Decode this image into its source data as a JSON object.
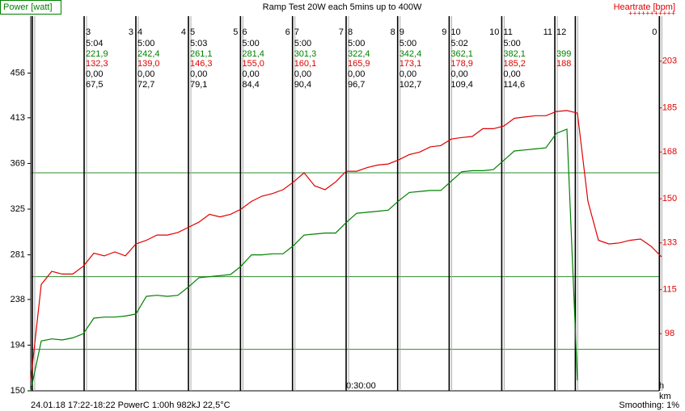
{
  "chart_data": {
    "type": "line",
    "title": "Ramp Test 20W each 5mins up to 400W",
    "y_label": "Power [watt]",
    "y2_label": "Heartrate [bpm]",
    "y2_label_marks": "+++++++++++",
    "footer_left": "24.01.18 17:22-18:22 PowerC 1:00h 982kJ 22,5°C",
    "footer_right": "Smoothing: 1%",
    "x_unit_top": "h",
    "x_unit_bottom": "km",
    "xlim": [
      0,
      60
    ],
    "xticks": [
      {
        "value": 30,
        "label": "0:30:00"
      }
    ],
    "ylim": [
      150,
      500
    ],
    "yticks": [
      150,
      194,
      238,
      281,
      325,
      369,
      413,
      456
    ],
    "y2lim": [
      76,
      216
    ],
    "y2ticks": [
      98,
      115,
      133,
      150,
      168,
      185,
      203
    ],
    "reference_lines": {
      "color": "#2e8b2e",
      "values": [
        360,
        260,
        190
      ]
    },
    "x": [
      0,
      1,
      2,
      3,
      4,
      5,
      6,
      7,
      8,
      9,
      10,
      11,
      12,
      13,
      14,
      15,
      16,
      17,
      18,
      19,
      20,
      21,
      22,
      23,
      24,
      25,
      26,
      27,
      28,
      29,
      30,
      31,
      32,
      33,
      34,
      35,
      36,
      37,
      38,
      39,
      40,
      41,
      42,
      43,
      44,
      45,
      46,
      47,
      48,
      49,
      50,
      51,
      52,
      53,
      54,
      55,
      56,
      57,
      58,
      59,
      60
    ],
    "series": [
      {
        "name": "Power",
        "color": "#008000",
        "values": [
          150,
          198,
          200,
          199,
          201,
          205,
          220,
          221,
          221,
          222,
          224,
          241,
          242,
          241,
          242,
          250,
          259,
          260,
          261,
          262,
          270,
          281,
          281,
          282,
          282,
          290,
          300,
          301,
          302,
          302,
          312,
          321,
          322,
          323,
          324,
          333,
          341,
          342,
          343,
          343,
          352,
          361,
          362,
          362,
          363,
          372,
          381,
          382,
          383,
          384,
          398,
          402,
          160,
          null,
          null,
          null,
          null,
          null,
          null,
          null,
          null
        ]
      },
      {
        "name": "Heartrate",
        "color": "#e00000",
        "axis": "y2",
        "values": [
          80,
          117,
          122,
          121,
          121,
          124,
          129,
          128,
          129.5,
          128,
          132.6,
          134,
          136,
          136,
          137,
          139,
          141,
          144,
          143,
          144,
          146,
          149,
          151,
          152,
          153.5,
          156.5,
          160,
          155,
          153.5,
          156.5,
          160.6,
          160.6,
          162,
          163,
          163.4,
          165,
          167,
          168,
          170,
          170.5,
          173,
          173.6,
          174,
          177,
          177,
          178,
          181,
          181.5,
          182,
          182,
          183.6,
          184,
          183,
          149,
          134,
          132.6,
          133,
          134,
          134.5,
          131.7,
          127.6
        ]
      }
    ],
    "markers": [
      {
        "minute": 0.15
      },
      {
        "minute": 5.08,
        "right": "3",
        "duration": "5:04",
        "power": "221,9",
        "heartrate": "132,3",
        "speed": "0,00",
        "distance": "67,5"
      },
      {
        "minute": 10,
        "left": "3",
        "right": "4",
        "duration": "5:00",
        "power": "242,4",
        "heartrate": "139,0",
        "speed": "0,00",
        "distance": "72,7"
      },
      {
        "minute": 15,
        "left": "4",
        "right": "5",
        "duration": "5:03",
        "power": "261,1",
        "heartrate": "146,3",
        "speed": "0,00",
        "distance": "79,1"
      },
      {
        "minute": 19.95,
        "left": "5",
        "right": "6",
        "duration": "5:00",
        "power": "281,4",
        "heartrate": "155,0",
        "speed": "0,00",
        "distance": "84,4"
      },
      {
        "minute": 24.9,
        "left": "6",
        "right": "7",
        "duration": "5:00",
        "power": "301,3",
        "heartrate": "160,1",
        "speed": "0,00",
        "distance": "90,4"
      },
      {
        "minute": 30,
        "left": "7",
        "right": "8",
        "duration": "5:00",
        "power": "322,4",
        "heartrate": "165,9",
        "speed": "0,00",
        "distance": "96,7"
      },
      {
        "minute": 34.9,
        "left": "8",
        "right": "9",
        "duration": "5:00",
        "power": "342,4",
        "heartrate": "173,1",
        "speed": "0,00",
        "distance": "102,7"
      },
      {
        "minute": 39.8,
        "left": "9",
        "right": "10",
        "duration": "5:02",
        "power": "362,1",
        "heartrate": "178,9",
        "speed": "0,00",
        "distance": "109,4"
      },
      {
        "minute": 44.8,
        "left": "10",
        "right": "11",
        "duration": "5:00",
        "power": "382,1",
        "heartrate": "185,2",
        "speed": "0,00",
        "distance": "114,6"
      },
      {
        "minute": 49.85,
        "left": "11",
        "right": "12",
        "power": "399",
        "heartrate": "188"
      },
      {
        "minute": 51.8
      },
      {
        "minute": 59.8,
        "left": "0"
      }
    ]
  }
}
